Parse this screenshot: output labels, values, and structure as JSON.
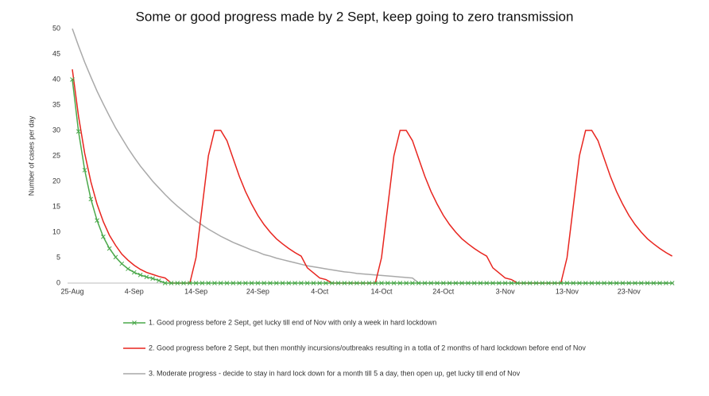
{
  "chart_data": {
    "type": "line",
    "title": "Some or good progress made by 2 Sept, keep going to zero transmission",
    "y_label": "Number of cases per day",
    "categories": [
      "25-Aug",
      null,
      null,
      null,
      null,
      null,
      null,
      null,
      null,
      null,
      "4-Sep",
      null,
      null,
      null,
      null,
      null,
      null,
      null,
      null,
      null,
      "14-Sep",
      null,
      null,
      null,
      null,
      null,
      null,
      null,
      null,
      null,
      "24-Sep",
      null,
      null,
      null,
      null,
      null,
      null,
      null,
      null,
      null,
      "4-Oct",
      null,
      null,
      null,
      null,
      null,
      null,
      null,
      null,
      null,
      "14-Oct",
      null,
      null,
      null,
      null,
      null,
      null,
      null,
      null,
      null,
      "24-Oct",
      null,
      null,
      null,
      null,
      null,
      null,
      null,
      null,
      null,
      "3-Nov",
      null,
      null,
      null,
      null,
      null,
      null,
      null,
      null,
      null,
      "13-Nov",
      null,
      null,
      null,
      null,
      null,
      null,
      null,
      null,
      null,
      "23-Nov",
      null,
      null,
      null,
      null,
      null,
      null,
      null
    ],
    "ylim": [
      0,
      50
    ],
    "yticks": [
      0,
      5,
      10,
      15,
      20,
      25,
      30,
      35,
      40,
      45,
      50
    ],
    "grid": false,
    "legend": "bottom",
    "series": [
      {
        "name": "1. Good progress before 2 Sept, get lucky till end of Nov with only a week in hard lockdown",
        "color": "#4aa84a",
        "marker": "x",
        "values": [
          40,
          29.8,
          22.2,
          16.5,
          12.3,
          9.1,
          6.8,
          5.1,
          3.8,
          2.8,
          2.1,
          1.6,
          1.2,
          0.9,
          0.5,
          0,
          0,
          0,
          0,
          0,
          0,
          0,
          0,
          0,
          0,
          0,
          0,
          0,
          0,
          0,
          0,
          0,
          0,
          0,
          0,
          0,
          0,
          0,
          0,
          0,
          0,
          0,
          0,
          0,
          0,
          0,
          0,
          0,
          0,
          0,
          0,
          0,
          0,
          0,
          0,
          0,
          0,
          0,
          0,
          0,
          0,
          0,
          0,
          0,
          0,
          0,
          0,
          0,
          0,
          0,
          0,
          0,
          0,
          0,
          0,
          0,
          0,
          0,
          0,
          0,
          0,
          0,
          0,
          0,
          0,
          0,
          0,
          0,
          0,
          0,
          0,
          0,
          0,
          0,
          0,
          0,
          0,
          0
        ]
      },
      {
        "name": "2. Good progress before 2 Sept, but then monthly incursions/outbreaks resulting in a totla of 2 months of hard lockdown before end of Nov",
        "color": "#e8251f",
        "values": [
          42,
          32.8,
          25.5,
          19.9,
          15.5,
          12.1,
          9.4,
          7.4,
          5.7,
          4.5,
          3.5,
          2.7,
          2.1,
          1.7,
          1.3,
          1.0,
          0,
          0,
          0,
          0,
          5,
          15,
          25,
          30,
          30,
          28,
          24.5,
          21,
          18,
          15.5,
          13.3,
          11.5,
          10,
          8.7,
          7.7,
          6.8,
          6,
          5.3,
          3,
          2,
          1,
          0.7,
          0,
          0,
          0,
          0,
          0,
          0,
          0,
          0,
          5,
          15,
          25,
          30,
          30,
          28,
          24.5,
          21,
          18,
          15.5,
          13.3,
          11.5,
          10,
          8.7,
          7.7,
          6.8,
          6,
          5.3,
          3,
          2,
          1,
          0.7,
          0,
          0,
          0,
          0,
          0,
          0,
          0,
          0,
          5,
          15,
          25,
          30,
          30,
          28,
          24.5,
          21,
          18,
          15.5,
          13.3,
          11.5,
          10,
          8.7,
          7.7,
          6.8,
          6,
          5.3
        ]
      },
      {
        "name": "3. Moderate progress - decide to stay in hard lock down for a month till 5 a day, then open up, get lucky till end of Nov",
        "color": "#a9a9a9",
        "values": [
          50,
          46.6,
          43.4,
          40.5,
          37.7,
          35.2,
          32.8,
          30.5,
          28.5,
          26.5,
          24.7,
          23.0,
          21.5,
          20.0,
          18.7,
          17.4,
          16.2,
          15.1,
          14.1,
          13.1,
          12.2,
          11.4,
          10.6,
          9.9,
          9.2,
          8.6,
          8.0,
          7.5,
          7.0,
          6.5,
          6.1,
          5.6,
          5.3,
          4.9,
          4.6,
          4.3,
          4.0,
          3.7,
          3.4,
          3.2,
          3.0,
          2.8,
          2.6,
          2.4,
          2.2,
          2.1,
          1.9,
          1.8,
          1.7,
          1.6,
          1.5,
          1.4,
          1.3,
          1.2,
          1.1,
          1.0,
          0,
          0,
          0,
          0,
          0,
          0,
          0,
          0,
          0,
          0,
          0,
          0,
          0,
          0,
          0,
          0,
          0,
          0,
          0,
          0,
          0,
          0,
          0,
          0,
          0,
          0,
          0,
          0,
          0,
          0,
          0,
          0,
          0,
          0,
          0,
          0,
          0,
          0,
          0,
          0,
          0,
          0
        ]
      }
    ]
  }
}
